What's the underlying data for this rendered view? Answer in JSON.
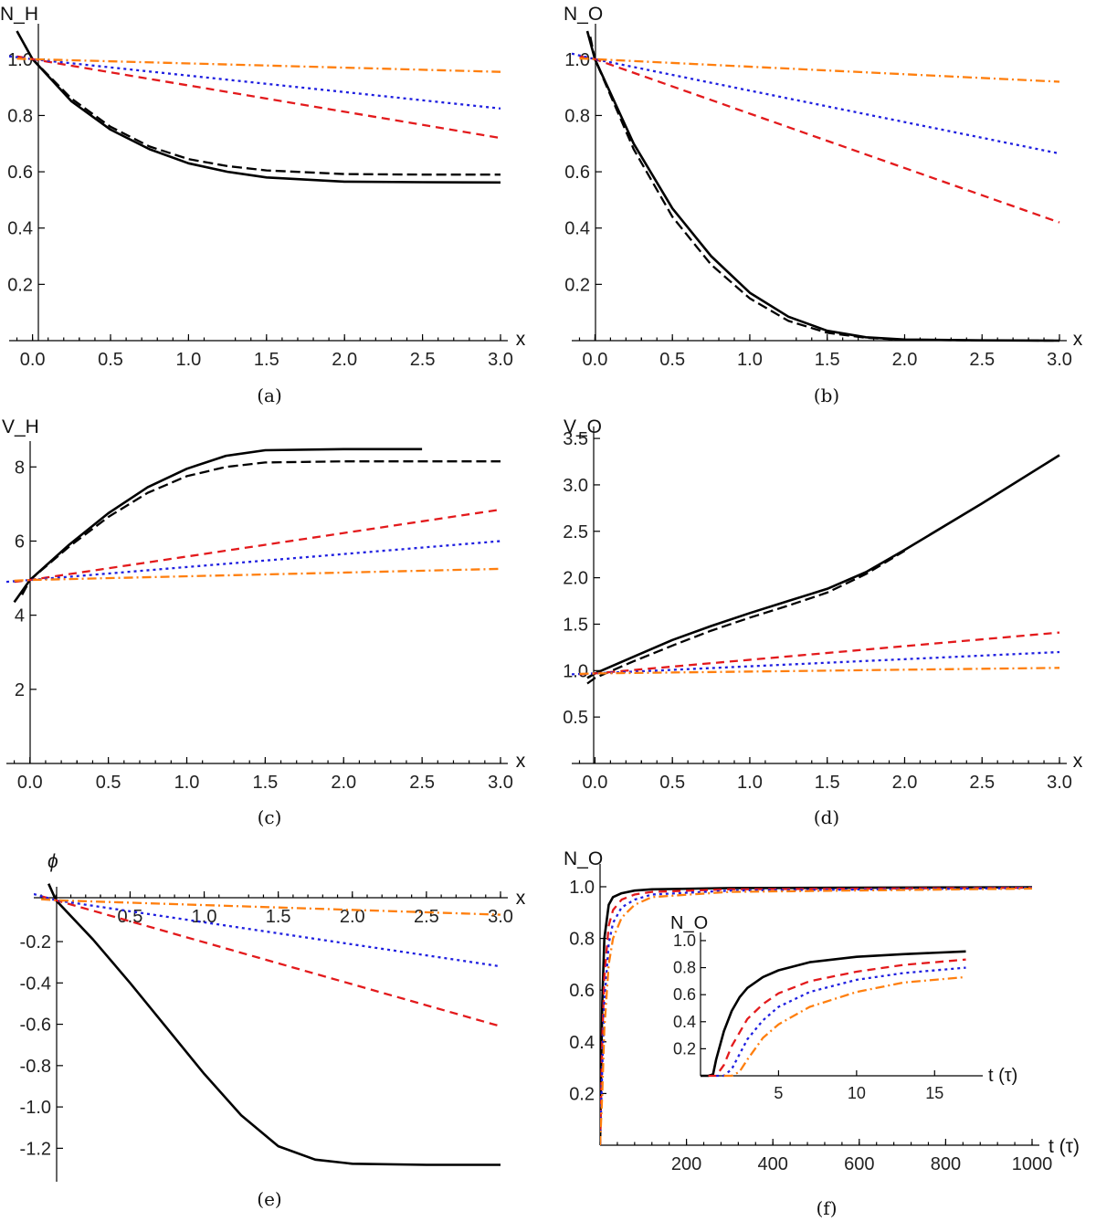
{
  "colors": {
    "black": "#000000",
    "red": "#e31a1c",
    "blue": "#1f1fe0",
    "orange": "#ff7f0e"
  },
  "chart_data": [
    {
      "id": "a",
      "type": "line",
      "caption": "(a)",
      "ylabel": "N_H",
      "xlabel": "x",
      "xlim": [
        -0.15,
        3.0
      ],
      "ylim": [
        0.0,
        1.1
      ],
      "xticks": [
        "0.0",
        "0.5",
        "1.0",
        "1.5",
        "2.0",
        "2.5",
        "3.0"
      ],
      "yticks": [
        "0.2",
        "0.4",
        "0.6",
        "0.8",
        "1.0"
      ],
      "series": [
        {
          "name": "black-solid",
          "color": "#000000",
          "dash": "solid",
          "x": [
            -0.1,
            0,
            0.25,
            0.5,
            0.75,
            1.0,
            1.25,
            1.5,
            2.0,
            2.5,
            3.0
          ],
          "y": [
            1.1,
            1.0,
            0.85,
            0.75,
            0.68,
            0.63,
            0.6,
            0.58,
            0.565,
            0.563,
            0.562
          ]
        },
        {
          "name": "black-dashed",
          "color": "#000000",
          "dash": "longdash",
          "x": [
            -0.05,
            0,
            0.25,
            0.5,
            0.75,
            1.0,
            1.25,
            1.5,
            2.0,
            2.5,
            3.0
          ],
          "y": [
            1.05,
            1.0,
            0.86,
            0.76,
            0.69,
            0.645,
            0.62,
            0.605,
            0.592,
            0.59,
            0.59
          ]
        },
        {
          "name": "red-dashed",
          "color": "#e31a1c",
          "dash": "dashed",
          "x": [
            -0.1,
            0,
            3.0
          ],
          "y": [
            1.01,
            1.0,
            0.72
          ]
        },
        {
          "name": "blue-dotted",
          "color": "#1f1fe0",
          "dash": "dotted",
          "x": [
            -0.15,
            0,
            3.0
          ],
          "y": [
            1.01,
            1.0,
            0.825
          ]
        },
        {
          "name": "orange-dashdot",
          "color": "#ff7f0e",
          "dash": "dashdot",
          "x": [
            -0.1,
            0,
            3.0
          ],
          "y": [
            1.002,
            1.0,
            0.955
          ]
        }
      ]
    },
    {
      "id": "b",
      "type": "line",
      "caption": "(b)",
      "ylabel": "N_O",
      "xlabel": "x",
      "xlim": [
        -0.15,
        3.0
      ],
      "ylim": [
        0.0,
        1.1
      ],
      "xticks": [
        "0.0",
        "0.5",
        "1.0",
        "1.5",
        "2.0",
        "2.5",
        "3.0"
      ],
      "yticks": [
        "0.2",
        "0.4",
        "0.6",
        "0.8",
        "1.0"
      ],
      "series": [
        {
          "name": "black-solid",
          "color": "#000000",
          "dash": "solid",
          "x": [
            -0.05,
            0,
            0.25,
            0.5,
            0.75,
            1.0,
            1.25,
            1.5,
            1.75,
            2.0,
            2.5,
            3.0
          ],
          "y": [
            1.1,
            1.0,
            0.7,
            0.47,
            0.3,
            0.17,
            0.085,
            0.035,
            0.012,
            0.004,
            0.001,
            0.0
          ]
        },
        {
          "name": "black-dashed",
          "color": "#000000",
          "dash": "longdash",
          "x": [
            -0.03,
            0,
            0.25,
            0.5,
            0.75,
            1.0,
            1.25,
            1.5,
            1.75,
            2.0,
            2.5,
            3.0
          ],
          "y": [
            1.08,
            1.0,
            0.68,
            0.44,
            0.27,
            0.15,
            0.07,
            0.028,
            0.01,
            0.003,
            0.001,
            0.0
          ]
        },
        {
          "name": "red-dashed",
          "color": "#e31a1c",
          "dash": "dashed",
          "x": [
            -0.1,
            0,
            3.0
          ],
          "y": [
            1.01,
            1.0,
            0.42
          ]
        },
        {
          "name": "blue-dotted",
          "color": "#1f1fe0",
          "dash": "dotted",
          "x": [
            -0.15,
            0,
            3.0
          ],
          "y": [
            1.02,
            1.0,
            0.665
          ]
        },
        {
          "name": "orange-dashdot",
          "color": "#ff7f0e",
          "dash": "dashdot",
          "x": [
            -0.1,
            0,
            3.0
          ],
          "y": [
            1.003,
            1.0,
            0.92
          ]
        }
      ]
    },
    {
      "id": "c",
      "type": "line",
      "caption": "(c)",
      "ylabel": "V_H",
      "xlabel": "x",
      "xlim": [
        -0.15,
        3.0
      ],
      "ylim": [
        0.0,
        8.5
      ],
      "xticks": [
        "0.0",
        "0.5",
        "1.0",
        "1.5",
        "2.0",
        "2.5",
        "3.0"
      ],
      "yticks": [
        "2",
        "4",
        "6",
        "8"
      ],
      "series": [
        {
          "name": "black-solid",
          "color": "#000000",
          "dash": "solid",
          "x": [
            -0.1,
            0,
            0.25,
            0.5,
            0.75,
            1.0,
            1.25,
            1.5,
            2.0,
            2.5
          ],
          "y": [
            4.35,
            4.95,
            5.9,
            6.75,
            7.45,
            7.95,
            8.3,
            8.45,
            8.48,
            8.48
          ]
        },
        {
          "name": "black-dashed",
          "color": "#000000",
          "dash": "longdash",
          "x": [
            -0.05,
            0,
            0.25,
            0.5,
            0.75,
            1.0,
            1.25,
            1.5,
            2.0,
            2.5,
            3.0
          ],
          "y": [
            4.55,
            4.95,
            5.85,
            6.65,
            7.3,
            7.75,
            8.0,
            8.12,
            8.15,
            8.15,
            8.15
          ]
        },
        {
          "name": "red-dashed",
          "color": "#e31a1c",
          "dash": "dashed",
          "x": [
            -0.1,
            0,
            3.0
          ],
          "y": [
            4.9,
            4.95,
            6.85
          ]
        },
        {
          "name": "blue-dotted",
          "color": "#1f1fe0",
          "dash": "dotted",
          "x": [
            -0.15,
            0,
            3.0
          ],
          "y": [
            4.9,
            4.95,
            6.0
          ]
        },
        {
          "name": "orange-dashdot",
          "color": "#ff7f0e",
          "dash": "dashdot",
          "x": [
            -0.1,
            0,
            3.0
          ],
          "y": [
            4.93,
            4.95,
            5.25
          ]
        }
      ]
    },
    {
      "id": "d",
      "type": "line",
      "caption": "(d)",
      "ylabel": "V_O",
      "xlabel": "x",
      "xlim": [
        -0.15,
        3.0
      ],
      "ylim": [
        0.0,
        3.55
      ],
      "xticks": [
        "0.0",
        "0.5",
        "1.0",
        "1.5",
        "2.0",
        "2.5",
        "3.0"
      ],
      "yticks": [
        "0.5",
        "1.0",
        "1.5",
        "2.0",
        "2.5",
        "3.0",
        "3.5"
      ],
      "series": [
        {
          "name": "black-solid",
          "color": "#000000",
          "dash": "solid",
          "x": [
            -0.05,
            0,
            0.25,
            0.5,
            0.75,
            1.0,
            1.25,
            1.5,
            1.75,
            2.0,
            2.5,
            3.0
          ],
          "y": [
            0.92,
            0.97,
            1.15,
            1.33,
            1.48,
            1.62,
            1.75,
            1.88,
            2.06,
            2.3,
            2.8,
            3.32
          ]
        },
        {
          "name": "black-dashed",
          "color": "#000000",
          "dash": "longdash",
          "x": [
            -0.05,
            0,
            0.25,
            0.5,
            0.75,
            1.0,
            1.25,
            1.5,
            1.75,
            2.0
          ],
          "y": [
            0.86,
            0.92,
            1.1,
            1.27,
            1.43,
            1.57,
            1.7,
            1.84,
            2.04,
            2.29
          ]
        },
        {
          "name": "red-dashed",
          "color": "#e31a1c",
          "dash": "dashed",
          "x": [
            -0.1,
            0,
            3.0
          ],
          "y": [
            0.96,
            0.97,
            1.41
          ]
        },
        {
          "name": "blue-dotted",
          "color": "#1f1fe0",
          "dash": "dotted",
          "x": [
            -0.15,
            0,
            3.0
          ],
          "y": [
            0.96,
            0.97,
            1.2
          ]
        },
        {
          "name": "orange-dashdot",
          "color": "#ff7f0e",
          "dash": "dashdot",
          "x": [
            -0.1,
            0,
            3.0
          ],
          "y": [
            0.965,
            0.97,
            1.03
          ]
        }
      ]
    },
    {
      "id": "e",
      "type": "line",
      "caption": "(e)",
      "ylabel": "ϕ",
      "xlabel": "x",
      "xlim": [
        -0.15,
        3.0
      ],
      "ylim": [
        -1.3,
        0.03
      ],
      "xticks": [
        "0.5",
        "1.0",
        "1.5",
        "2.0",
        "2.5",
        "3.0"
      ],
      "yticks": [
        "-0.2",
        "-0.4",
        "-0.6",
        "-0.8",
        "-1.0",
        "-1.2"
      ],
      "series": [
        {
          "name": "black-solid",
          "color": "#000000",
          "dash": "solid",
          "x": [
            -0.05,
            0,
            0.25,
            0.5,
            0.75,
            1.0,
            1.25,
            1.5,
            1.75,
            2.0,
            2.5,
            3.0
          ],
          "y": [
            0.08,
            0.0,
            -0.19,
            -0.4,
            -0.62,
            -0.84,
            -1.04,
            -1.19,
            -1.255,
            -1.275,
            -1.28,
            -1.28
          ]
        },
        {
          "name": "red-dashed",
          "color": "#e31a1c",
          "dash": "dashed",
          "x": [
            -0.1,
            0,
            3.0
          ],
          "y": [
            0.02,
            0.0,
            -0.61
          ]
        },
        {
          "name": "blue-dotted",
          "color": "#1f1fe0",
          "dash": "dotted",
          "x": [
            -0.15,
            0,
            3.0
          ],
          "y": [
            0.03,
            0.0,
            -0.32
          ]
        },
        {
          "name": "orange-dashdot",
          "color": "#ff7f0e",
          "dash": "dashdot",
          "x": [
            -0.1,
            0,
            3.0
          ],
          "y": [
            0.005,
            0.0,
            -0.07
          ]
        }
      ]
    },
    {
      "id": "f",
      "type": "line",
      "caption": "(f)",
      "ylabel": "N_O",
      "xlabel": "t (τ)",
      "xlim": [
        0,
        1000
      ],
      "ylim": [
        0.0,
        1.06
      ],
      "xticks": [
        "200",
        "400",
        "600",
        "800",
        "1000"
      ],
      "yticks": [
        "0.2",
        "0.4",
        "0.6",
        "0.8",
        "1.0"
      ],
      "series": [
        {
          "name": "black-solid",
          "color": "#000000",
          "dash": "solid",
          "x": [
            0,
            5,
            10,
            20,
            30,
            50,
            80,
            120,
            300,
            1000
          ],
          "y": [
            0.0,
            0.55,
            0.8,
            0.93,
            0.96,
            0.975,
            0.985,
            0.99,
            0.995,
            0.998
          ]
        },
        {
          "name": "red-dashed",
          "color": "#e31a1c",
          "dash": "dashed",
          "x": [
            0,
            5,
            10,
            20,
            30,
            50,
            80,
            120,
            300,
            1000
          ],
          "y": [
            0.0,
            0.4,
            0.65,
            0.85,
            0.91,
            0.95,
            0.97,
            0.98,
            0.99,
            0.996
          ]
        },
        {
          "name": "blue-dotted",
          "color": "#1f1fe0",
          "dash": "dotted",
          "x": [
            0,
            5,
            10,
            20,
            30,
            50,
            80,
            120,
            300,
            1000
          ],
          "y": [
            0.0,
            0.3,
            0.55,
            0.78,
            0.86,
            0.92,
            0.95,
            0.97,
            0.985,
            0.995
          ]
        },
        {
          "name": "orange-dashdot",
          "color": "#ff7f0e",
          "dash": "dashdot",
          "x": [
            0,
            5,
            10,
            20,
            30,
            50,
            80,
            120,
            300,
            1000
          ],
          "y": [
            0.0,
            0.2,
            0.45,
            0.7,
            0.8,
            0.88,
            0.93,
            0.96,
            0.98,
            0.993
          ]
        }
      ],
      "inset": {
        "ylabel": "N_O",
        "xlabel": "t (τ)",
        "xlim": [
          0,
          17.5
        ],
        "ylim": [
          0,
          1.02
        ],
        "xticks": [
          "5",
          "10",
          "15"
        ],
        "yticks": [
          "0.2",
          "0.4",
          "0.6",
          "0.8",
          "1.0"
        ],
        "series": [
          {
            "name": "black-solid",
            "color": "#000000",
            "dash": "solid",
            "x": [
              0.0,
              0.5,
              0.8,
              1.0,
              1.5,
              2.0,
              2.5,
              3.0,
              4.0,
              5.0,
              7.0,
              10.0,
              13.0,
              17.0
            ],
            "y": [
              0.0,
              0.0,
              0.01,
              0.12,
              0.33,
              0.48,
              0.58,
              0.65,
              0.73,
              0.78,
              0.84,
              0.88,
              0.9,
              0.92
            ]
          },
          {
            "name": "red-dashed",
            "color": "#e31a1c",
            "dash": "dashed",
            "x": [
              0.5,
              1.0,
              1.5,
              2.0,
              3.0,
              4.0,
              5.0,
              7.0,
              10.0,
              13.0,
              17.0
            ],
            "y": [
              0.0,
              0.0,
              0.08,
              0.22,
              0.42,
              0.53,
              0.61,
              0.7,
              0.77,
              0.82,
              0.86
            ]
          },
          {
            "name": "blue-dotted",
            "color": "#1f1fe0",
            "dash": "dotted",
            "x": [
              1.0,
              1.5,
              2.0,
              3.0,
              4.0,
              5.0,
              7.0,
              10.0,
              13.0,
              17.0
            ],
            "y": [
              0.0,
              0.0,
              0.05,
              0.27,
              0.41,
              0.51,
              0.62,
              0.71,
              0.76,
              0.8
            ]
          },
          {
            "name": "orange-dashdot",
            "color": "#ff7f0e",
            "dash": "dashdot",
            "x": [
              1.5,
              2.0,
              2.5,
              3.0,
              4.0,
              5.0,
              7.0,
              10.0,
              13.0,
              17.0
            ],
            "y": [
              0.0,
              0.0,
              0.03,
              0.12,
              0.28,
              0.38,
              0.51,
              0.62,
              0.69,
              0.73
            ]
          }
        ]
      }
    }
  ]
}
